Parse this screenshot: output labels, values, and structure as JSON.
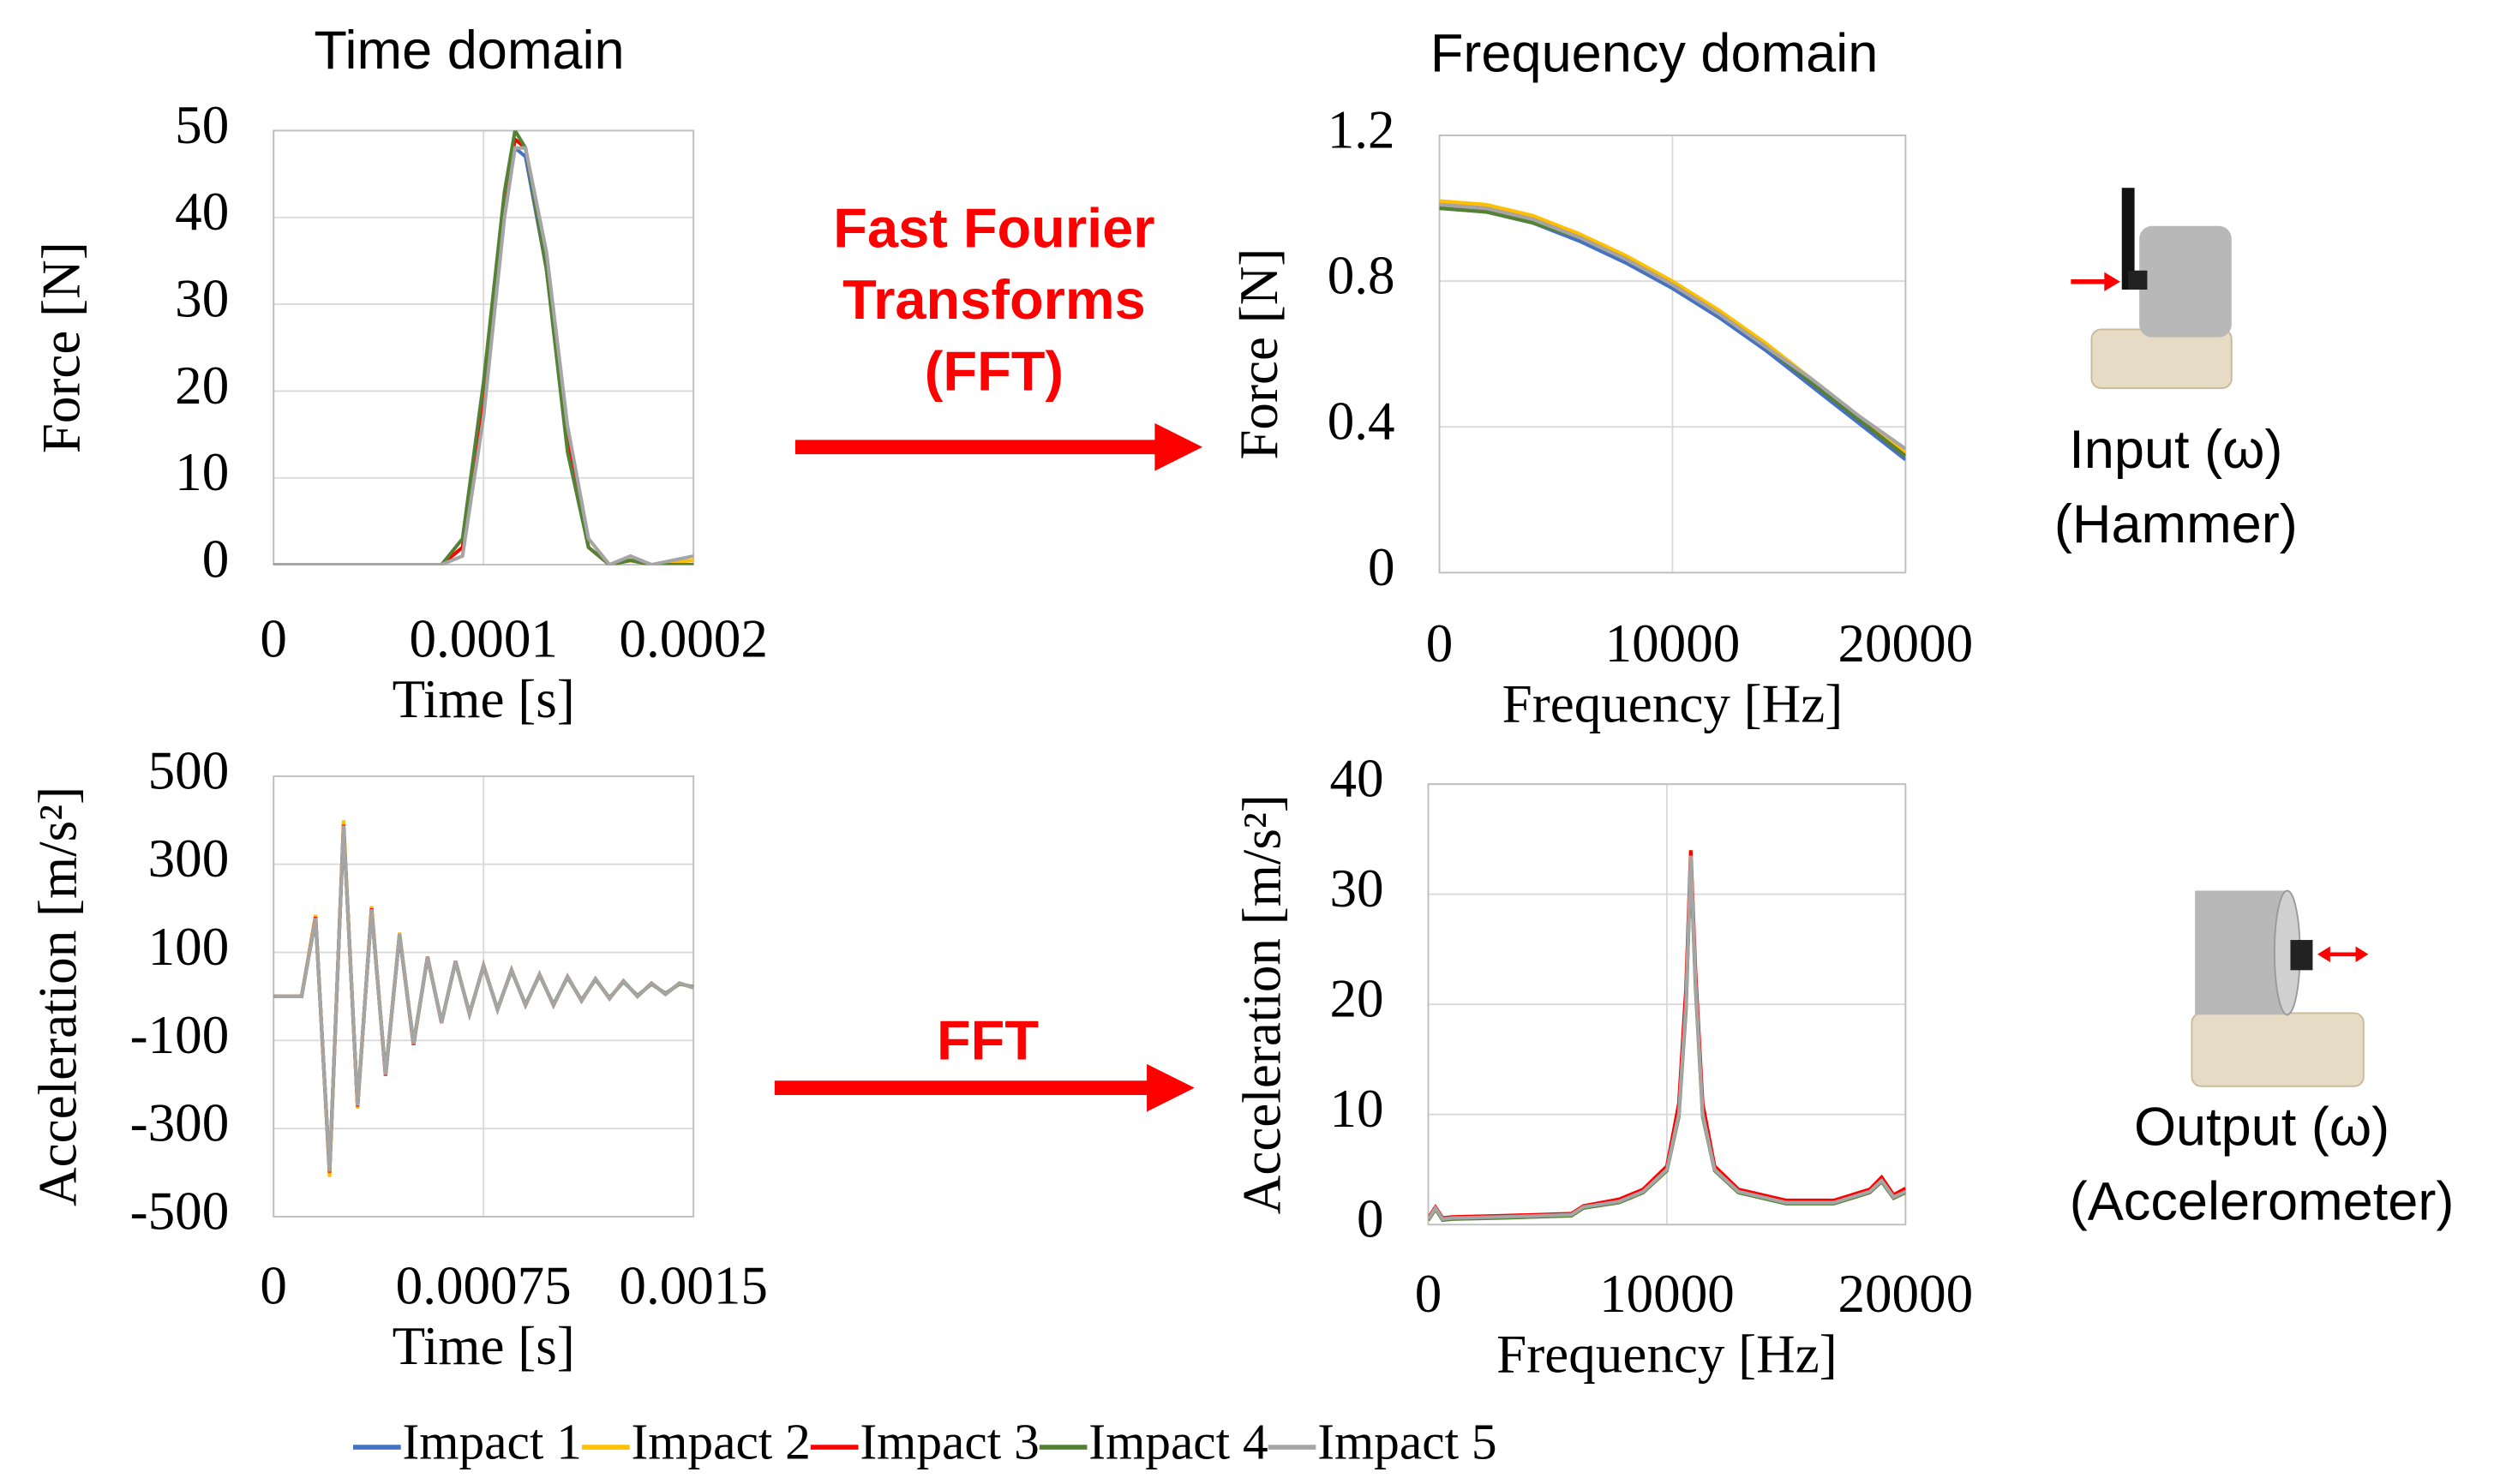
{
  "chart_data": [
    {
      "type": "line",
      "title": "Time domain",
      "xlabel": "Time [s]",
      "ylabel": "Force [N]",
      "xlim": [
        0,
        0.0002
      ],
      "xticks": [
        0,
        0.0001,
        0.0002
      ],
      "ylim": [
        0,
        50
      ],
      "yticks": [
        0,
        10,
        20,
        30,
        40,
        50
      ],
      "grid": true,
      "x": [
        0,
        8e-05,
        9e-05,
        0.0001,
        0.00011,
        0.000115,
        0.00012,
        0.00013,
        0.00014,
        0.00015,
        0.00016,
        0.00017,
        0.00018,
        0.0002
      ],
      "series": [
        {
          "values": [
            0,
            0,
            2,
            19,
            41,
            48,
            47,
            34,
            14,
            2,
            0,
            0.5,
            0,
            0
          ]
        },
        {
          "values": [
            0,
            0,
            2,
            19,
            42,
            49,
            48,
            35,
            15,
            3,
            0,
            0.5,
            0,
            0.5
          ]
        },
        {
          "values": [
            0,
            0,
            2,
            20,
            42,
            49,
            48,
            34,
            14,
            2,
            0,
            0.5,
            0,
            0
          ]
        },
        {
          "values": [
            0,
            0,
            3,
            21,
            43,
            50,
            48,
            34,
            13,
            2,
            0,
            0.5,
            0,
            0
          ]
        },
        {
          "values": [
            0,
            0,
            1,
            17,
            40,
            48,
            48,
            36,
            16,
            3,
            0,
            1,
            0,
            1
          ]
        }
      ]
    },
    {
      "type": "line",
      "title": "Frequency domain",
      "xlabel": "Frequency [Hz]",
      "ylabel": "Force [N]",
      "xlim": [
        0,
        20000
      ],
      "xticks": [
        0,
        10000,
        20000
      ],
      "ylim": [
        0,
        1.2
      ],
      "yticks": [
        0,
        0.4,
        0.8,
        1.2
      ],
      "grid": true,
      "x": [
        0,
        2000,
        4000,
        6000,
        8000,
        10000,
        12000,
        14000,
        16000,
        18000,
        20000
      ],
      "series": [
        {
          "values": [
            1.0,
            0.99,
            0.96,
            0.91,
            0.85,
            0.78,
            0.7,
            0.61,
            0.51,
            0.41,
            0.31
          ]
        },
        {
          "values": [
            1.02,
            1.01,
            0.98,
            0.93,
            0.87,
            0.8,
            0.72,
            0.63,
            0.53,
            0.43,
            0.33
          ]
        },
        {
          "values": [
            1.01,
            1.0,
            0.97,
            0.92,
            0.86,
            0.79,
            0.71,
            0.62,
            0.52,
            0.42,
            0.32
          ]
        },
        {
          "values": [
            1.0,
            0.99,
            0.96,
            0.92,
            0.86,
            0.79,
            0.71,
            0.62,
            0.52,
            0.42,
            0.32
          ]
        },
        {
          "values": [
            1.01,
            1.0,
            0.97,
            0.92,
            0.86,
            0.79,
            0.71,
            0.62,
            0.53,
            0.43,
            0.34
          ]
        }
      ]
    },
    {
      "type": "line",
      "xlabel": "Time [s]",
      "ylabel": "Acceleration [m/s²]",
      "xlim": [
        0,
        0.0015
      ],
      "xticks": [
        0,
        0.00075,
        0.0015
      ],
      "ylim": [
        -500,
        500
      ],
      "yticks": [
        -500,
        -300,
        -100,
        100,
        300,
        500
      ],
      "grid": true,
      "x": [
        0,
        5e-05,
        0.0001,
        0.00015,
        0.0002,
        0.00025,
        0.0003,
        0.00035,
        0.0004,
        0.00045,
        0.0005,
        0.00055,
        0.0006,
        0.00065,
        0.0007,
        0.00075,
        0.0008,
        0.00085,
        0.0009,
        0.00095,
        0.001,
        0.00105,
        0.0011,
        0.00115,
        0.0012,
        0.00125,
        0.0013,
        0.00135,
        0.0014,
        0.00145,
        0.0015
      ],
      "series": [
        {
          "values": [
            0,
            0,
            0,
            180,
            -400,
            390,
            -250,
            200,
            -180,
            140,
            -110,
            90,
            -60,
            80,
            -40,
            70,
            -30,
            60,
            -20,
            50,
            -20,
            45,
            -10,
            40,
            -5,
            35,
            0,
            30,
            5,
            30,
            20
          ]
        },
        {
          "values": [
            0,
            0,
            0,
            185,
            -410,
            400,
            -255,
            205,
            -180,
            145,
            -110,
            90,
            -60,
            80,
            -40,
            70,
            -30,
            60,
            -20,
            50,
            -20,
            45,
            -10,
            40,
            -5,
            35,
            0,
            30,
            5,
            30,
            20
          ]
        },
        {
          "values": [
            0,
            0,
            0,
            180,
            -400,
            390,
            -250,
            200,
            -180,
            140,
            -110,
            90,
            -60,
            80,
            -40,
            70,
            -30,
            60,
            -20,
            50,
            -20,
            45,
            -10,
            40,
            -5,
            35,
            0,
            30,
            5,
            30,
            20
          ]
        },
        {
          "values": [
            0,
            0,
            0,
            175,
            -395,
            385,
            -245,
            195,
            -175,
            140,
            -105,
            88,
            -58,
            78,
            -38,
            68,
            -28,
            58,
            -18,
            48,
            -18,
            43,
            -8,
            38,
            -3,
            33,
            2,
            28,
            7,
            28,
            22
          ]
        },
        {
          "values": [
            0,
            0,
            0,
            178,
            -398,
            388,
            -248,
            198,
            -178,
            142,
            -108,
            90,
            -60,
            80,
            -40,
            70,
            -30,
            60,
            -20,
            50,
            -20,
            45,
            -10,
            40,
            -5,
            35,
            0,
            30,
            5,
            30,
            20
          ]
        }
      ]
    },
    {
      "type": "line",
      "xlabel": "Frequency [Hz]",
      "ylabel": "Acceleration [m/s²]",
      "xlim": [
        0,
        20000
      ],
      "xticks": [
        0,
        10000,
        20000
      ],
      "ylim": [
        0,
        40
      ],
      "yticks": [
        0,
        10,
        20,
        30,
        40
      ],
      "grid": true,
      "x": [
        0,
        300,
        600,
        1000,
        3000,
        6000,
        6500,
        8000,
        9000,
        10000,
        10500,
        10800,
        11000,
        11200,
        11500,
        12000,
        13000,
        15000,
        17000,
        18500,
        19000,
        19500,
        20000
      ],
      "series": [
        {
          "values": [
            0.5,
            1.5,
            0.5,
            0.6,
            0.7,
            0.9,
            1.6,
            2.1,
            3,
            5,
            10,
            20,
            33,
            22,
            10,
            5,
            3,
            2,
            2,
            3,
            4,
            2.5,
            3
          ]
        },
        {
          "values": [
            0.5,
            1.5,
            0.5,
            0.6,
            0.7,
            0.9,
            1.6,
            2.2,
            3.1,
            5.2,
            10.5,
            21,
            34,
            22.5,
            10.5,
            5.2,
            3.1,
            2.1,
            2.1,
            3.1,
            4.2,
            2.6,
            3.2
          ]
        },
        {
          "values": [
            0.6,
            1.6,
            0.6,
            0.7,
            0.8,
            1,
            1.7,
            2.3,
            3.2,
            5.3,
            11,
            21.5,
            34,
            23,
            11,
            5.3,
            3.2,
            2.2,
            2.2,
            3.2,
            4.3,
            2.7,
            3.3
          ]
        },
        {
          "values": [
            0.4,
            1.4,
            0.4,
            0.5,
            0.6,
            0.8,
            1.5,
            2,
            2.9,
            4.9,
            9.8,
            19.5,
            33,
            21.5,
            9.8,
            4.9,
            2.9,
            1.9,
            1.9,
            2.9,
            3.9,
            2.4,
            2.9
          ]
        },
        {
          "values": [
            0.5,
            1.5,
            0.5,
            0.6,
            0.7,
            0.9,
            1.6,
            2.1,
            3,
            5,
            10,
            20,
            33.5,
            22,
            10,
            5,
            3,
            2,
            2,
            3,
            4,
            2.5,
            3
          ]
        }
      ]
    }
  ],
  "legend": [
    {
      "name": "Impact 1",
      "color": "#4472c4"
    },
    {
      "name": "Impact 2",
      "color": "#ffc000"
    },
    {
      "name": "Impact 3",
      "color": "#ff0000"
    },
    {
      "name": "Impact 4",
      "color": "#548235"
    },
    {
      "name": "Impact 5",
      "color": "#a5a5a5"
    }
  ],
  "arrows": [
    {
      "label_lines": [
        "Fast Fourier",
        "Transforms",
        "(FFT)"
      ]
    },
    {
      "label_lines": [
        "FFT"
      ]
    }
  ],
  "diagram_labels": [
    {
      "lines": [
        "Input (ω)",
        "(Hammer)"
      ]
    },
    {
      "lines": [
        "Output (ω)",
        "(Accelerometer)"
      ]
    }
  ]
}
